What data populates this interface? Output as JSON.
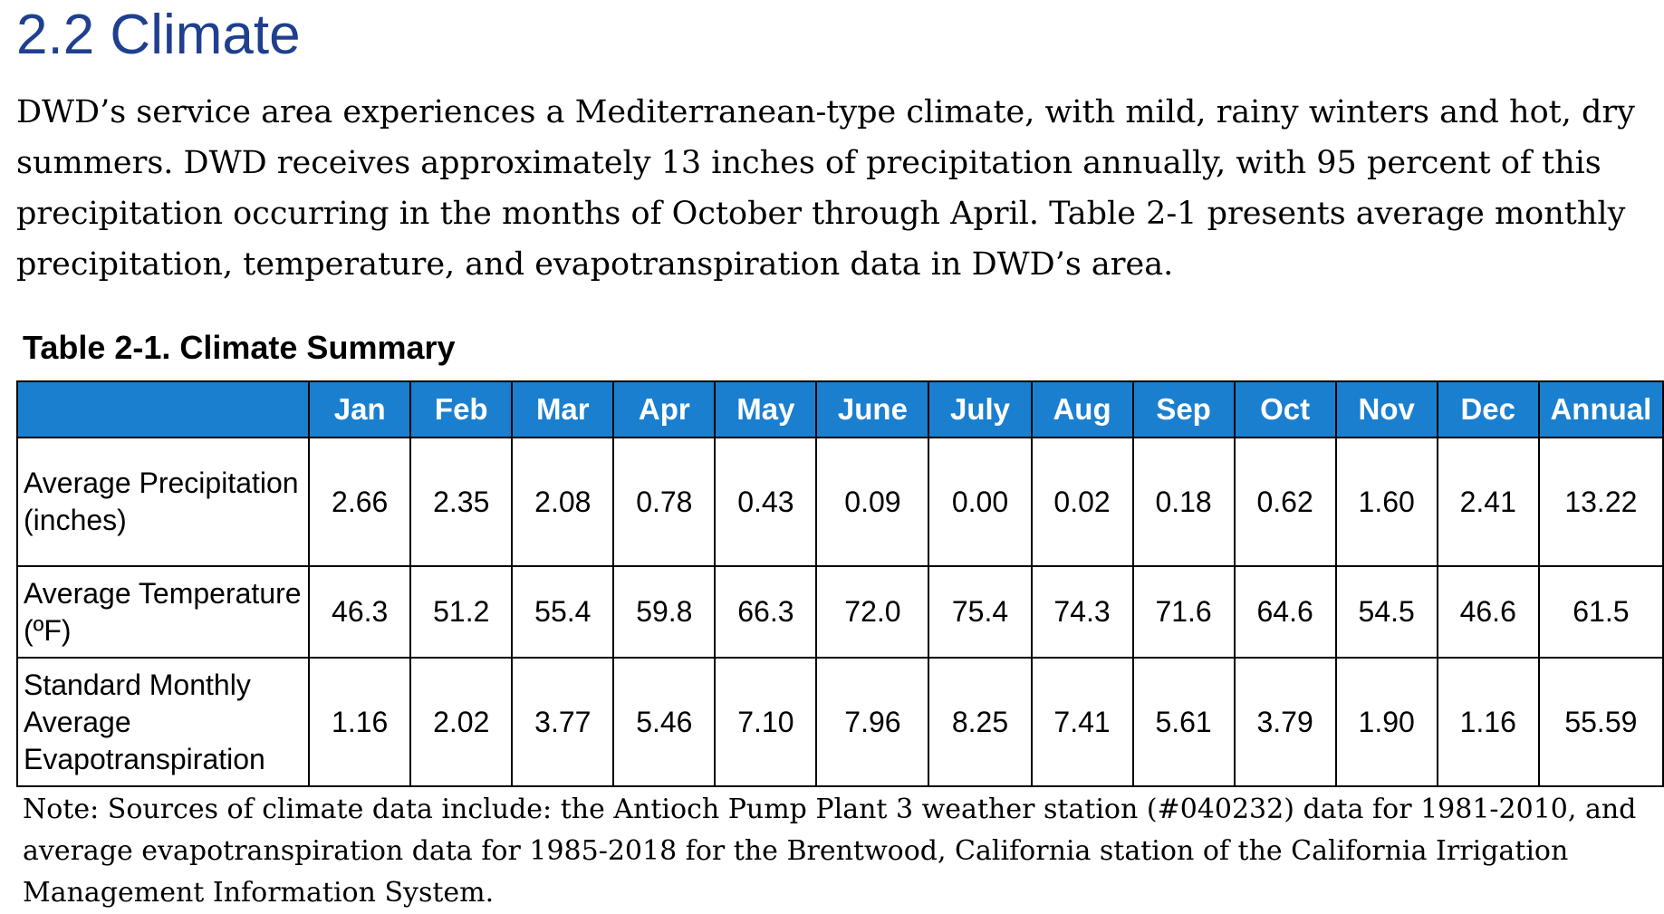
{
  "section": {
    "heading": "2.2 Climate",
    "paragraph": "DWD’s service area experiences a Mediterranean-type climate, with mild, rainy winters and hot, dry summers. DWD receives approximately 13 inches of precipitation annually, with 95 percent of this precipitation occurring in the months of October through April. Table 2-1 presents average monthly precipitation, temperature, and evapotranspiration data in DWD’s area."
  },
  "table": {
    "caption": "Table 2-1. Climate Summary",
    "header_color": "#1b7fcf",
    "columns": [
      "",
      "Jan",
      "Feb",
      "Mar",
      "Apr",
      "May",
      "June",
      "July",
      "Aug",
      "Sep",
      "Oct",
      "Nov",
      "Dec",
      "Annual"
    ],
    "rows": [
      {
        "label": "Average Precipitation (inches)",
        "values": [
          "2.66",
          "2.35",
          "2.08",
          "0.78",
          "0.43",
          "0.09",
          "0.00",
          "0.02",
          "0.18",
          "0.62",
          "1.60",
          "2.41",
          "13.22"
        ]
      },
      {
        "label": "Average Temperature (ºF)",
        "values": [
          "46.3",
          "51.2",
          "55.4",
          "59.8",
          "66.3",
          "72.0",
          "75.4",
          "74.3",
          "71.6",
          "64.6",
          "54.5",
          "46.6",
          "61.5"
        ]
      },
      {
        "label": "Standard Monthly Average Evapotranspiration",
        "values": [
          "1.16",
          "2.02",
          "3.77",
          "5.46",
          "7.10",
          "7.96",
          "8.25",
          "7.41",
          "5.61",
          "3.79",
          "1.90",
          "1.16",
          "55.59"
        ]
      }
    ]
  },
  "note": "Note: Sources of climate data include: the Antioch Pump Plant 3 weather station (#040232) data for 1981-2010, and average evapotranspiration data for 1985-2018 for the Brentwood, California station of the California Irrigation Management Information System."
}
